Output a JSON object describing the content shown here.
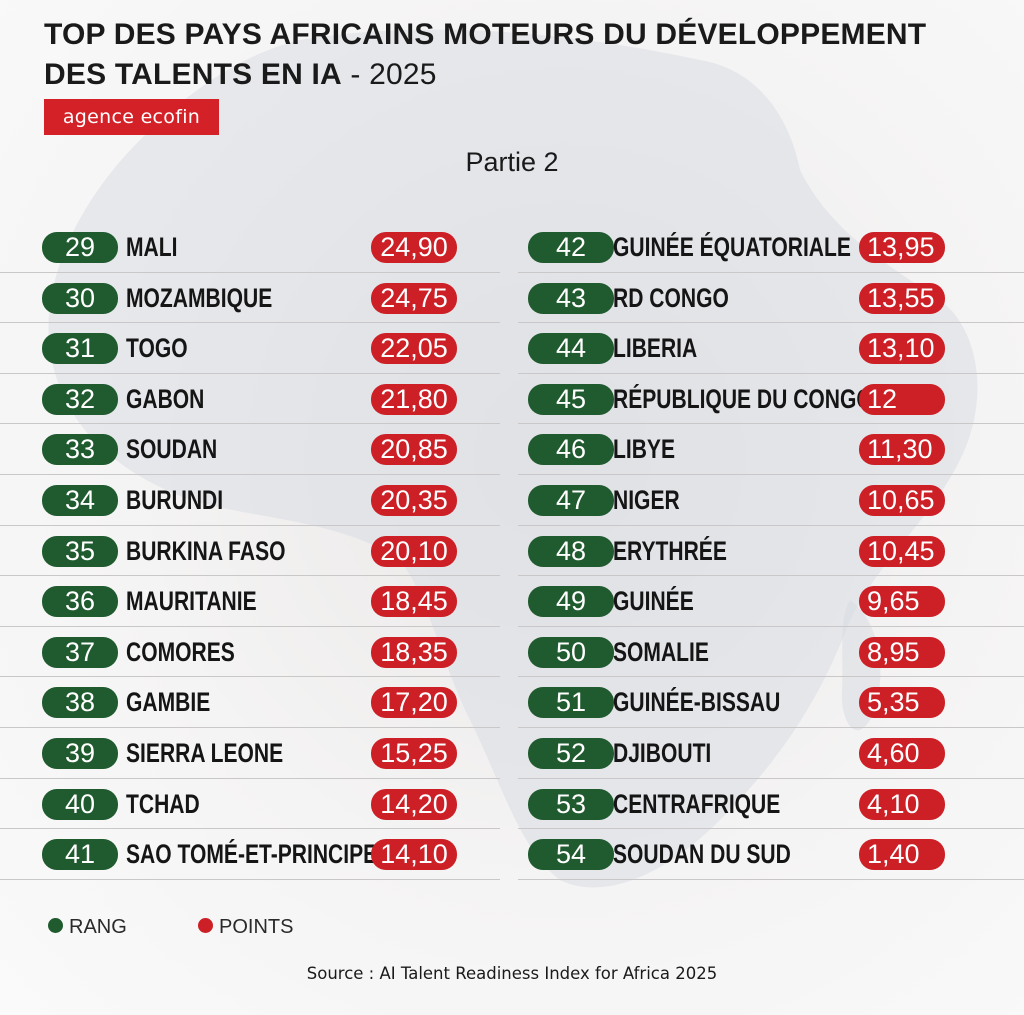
{
  "header": {
    "title_line1": "TOP DES PAYS AFRICAINS MOTEURS DU DÉVELOPPEMENT",
    "title_line2": "DES TALENTS EN IA",
    "title_year": " - 2025",
    "brand": "agence ecofin",
    "subtitle": "Partie 2"
  },
  "colors": {
    "rank": "#1f5b2e",
    "points": "#cc1f26",
    "brand": "#d42027"
  },
  "legend": {
    "rank_label": "RANG",
    "points_label": "POINTS"
  },
  "source": "Source : AI Talent Readiness Index for Africa 2025",
  "chart_data": {
    "type": "table",
    "columns": [
      "rang",
      "pays",
      "points"
    ],
    "rows": [
      {
        "rank": "29",
        "country": "MALI",
        "points": "24,90"
      },
      {
        "rank": "30",
        "country": "MOZAMBIQUE",
        "points": "24,75"
      },
      {
        "rank": "31",
        "country": "TOGO",
        "points": "22,05"
      },
      {
        "rank": "32",
        "country": "GABON",
        "points": "21,80"
      },
      {
        "rank": "33",
        "country": "SOUDAN",
        "points": "20,85"
      },
      {
        "rank": "34",
        "country": "BURUNDI",
        "points": "20,35"
      },
      {
        "rank": "35",
        "country": "BURKINA FASO",
        "points": "20,10"
      },
      {
        "rank": "36",
        "country": "MAURITANIE",
        "points": "18,45"
      },
      {
        "rank": "37",
        "country": "COMORES",
        "points": "18,35"
      },
      {
        "rank": "38",
        "country": "GAMBIE",
        "points": "17,20"
      },
      {
        "rank": "39",
        "country": "SIERRA LEONE",
        "points": "15,25"
      },
      {
        "rank": "40",
        "country": "TCHAD",
        "points": "14,20"
      },
      {
        "rank": "41",
        "country": "SAO TOMÉ-ET-PRINCIPE",
        "points": "14,10"
      },
      {
        "rank": "42",
        "country": "GUINÉE ÉQUATORIALE",
        "points": "13,95"
      },
      {
        "rank": "43",
        "country": "RD CONGO",
        "points": "13,55"
      },
      {
        "rank": "44",
        "country": "LIBERIA",
        "points": "13,10"
      },
      {
        "rank": "45",
        "country": "RÉPUBLIQUE DU CONGO",
        "points": "12"
      },
      {
        "rank": "46",
        "country": "LIBYE",
        "points": "11,30"
      },
      {
        "rank": "47",
        "country": "NIGER",
        "points": "10,65"
      },
      {
        "rank": "48",
        "country": "ERYTHRÉE",
        "points": "10,45"
      },
      {
        "rank": "49",
        "country": "GUINÉE",
        "points": "9,65"
      },
      {
        "rank": "50",
        "country": "SOMALIE",
        "points": "8,95"
      },
      {
        "rank": "51",
        "country": "GUINÉE-BISSAU",
        "points": "5,35"
      },
      {
        "rank": "52",
        "country": "DJIBOUTI",
        "points": "4,60"
      },
      {
        "rank": "53",
        "country": "CENTRAFRIQUE",
        "points": "4,10"
      },
      {
        "rank": "54",
        "country": "SOUDAN DU SUD",
        "points": "1,40"
      }
    ]
  }
}
